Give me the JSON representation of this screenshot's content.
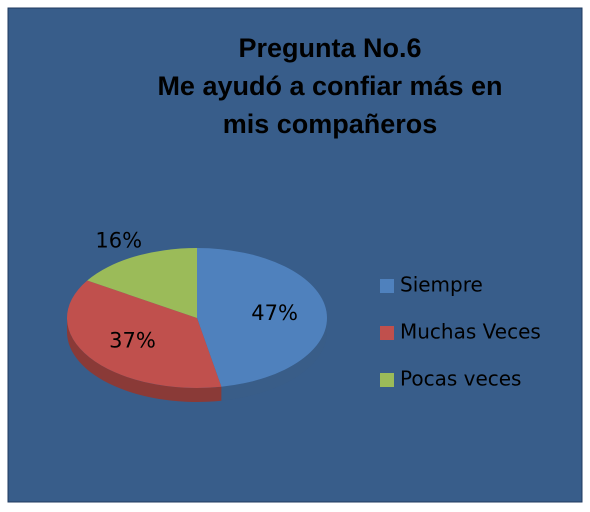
{
  "chart_data": {
    "type": "pie",
    "title": [
      "Pregunta No.6",
      "Me ayudó a confiar más en",
      "mis compañeros"
    ],
    "categories": [
      "Siempre",
      "Muchas Veces",
      "Pocas veces"
    ],
    "values": [
      47,
      37,
      16
    ],
    "value_labels": [
      "47%",
      "37%",
      "16%"
    ],
    "colors": [
      "#4f81bd",
      "#c0504d",
      "#9bbb59"
    ],
    "legend": "right"
  }
}
